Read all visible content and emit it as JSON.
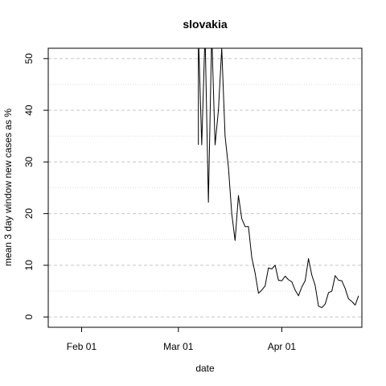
{
  "chart_data": {
    "type": "line",
    "title": "slovakia",
    "xlabel": "date",
    "ylabel": "mean  3  day window new cases as %",
    "x_ticks": [
      "Feb 01",
      "Mar 01",
      "Apr 01"
    ],
    "y_ticks": [
      0,
      10,
      20,
      30,
      40,
      50
    ],
    "ylim": [
      -2,
      52
    ],
    "xlim": [
      "2020-01-22",
      "2020-04-25"
    ],
    "grid": true,
    "grid_style": "dashed",
    "series": [
      {
        "color": "#000000",
        "x": [
          "2020-03-07",
          "2020-03-07",
          "2020-03-08",
          "2020-03-09",
          "2020-03-10",
          "2020-03-11",
          "2020-03-12",
          "2020-03-13",
          "2020-03-14",
          "2020-03-15",
          "2020-03-16",
          "2020-03-17",
          "2020-03-18",
          "2020-03-19",
          "2020-03-20",
          "2020-03-21",
          "2020-03-22",
          "2020-03-23",
          "2020-03-24",
          "2020-03-25",
          "2020-03-26",
          "2020-03-27",
          "2020-03-28",
          "2020-03-29",
          "2020-03-30",
          "2020-03-31",
          "2020-04-01",
          "2020-04-02",
          "2020-04-03",
          "2020-04-04",
          "2020-04-05",
          "2020-04-06",
          "2020-04-07",
          "2020-04-08",
          "2020-04-09",
          "2020-04-10",
          "2020-04-11",
          "2020-04-12",
          "2020-04-13",
          "2020-04-14",
          "2020-04-15",
          "2020-04-16",
          "2020-04-17",
          "2020-04-18",
          "2020-04-19",
          "2020-04-20",
          "2020-04-21",
          "2020-04-22",
          "2020-04-23",
          "2020-04-24"
        ],
        "y": [
          33.3,
          55,
          33.3,
          55,
          22.2,
          55,
          33.3,
          40,
          52,
          35,
          29,
          20,
          14.8,
          23.5,
          19,
          17.5,
          17.5,
          11.5,
          8.5,
          4.6,
          5.2,
          6,
          9.5,
          9.3,
          10,
          7.1,
          7,
          7.9,
          7.2,
          6.8,
          5.2,
          4.1,
          5.8,
          7,
          11.3,
          8.1,
          6.1,
          2.1,
          1.8,
          2.5,
          4.7,
          5,
          8,
          7.1,
          7,
          5.5,
          3.5,
          3,
          2.3,
          4.1
        ]
      }
    ]
  }
}
